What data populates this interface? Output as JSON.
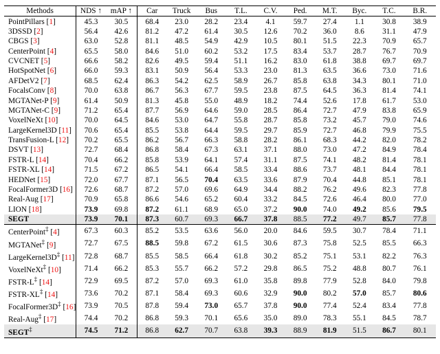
{
  "columns": [
    "Methods",
    "NDS ↑",
    "mAP ↑",
    "Car",
    "Truck",
    "Bus",
    "T.L.",
    "C.V.",
    "Ped.",
    "M.T.",
    "Byc.",
    "T.C.",
    "B.R."
  ],
  "col_widths": [
    "16.5%",
    "6.8%",
    "7.2%",
    "6.8%",
    "6.8%",
    "6.8%",
    "6.8%",
    "6.8%",
    "6.8%",
    "6.8%",
    "6.8%",
    "6.8%",
    "7.3%"
  ],
  "sections": [
    {
      "rows": [
        {
          "method": "PointPillars",
          "ref": "1",
          "v": [
            "45.3",
            "30.5",
            "68.4",
            "23.0",
            "28.2",
            "23.4",
            "4.1",
            "59.7",
            "27.4",
            "1.1",
            "30.8",
            "38.9"
          ]
        },
        {
          "method": "3DSSD",
          "ref": "2",
          "v": [
            "56.4",
            "42.6",
            "81.2",
            "47.2",
            "61.4",
            "30.5",
            "12.6",
            "70.2",
            "36.0",
            "8.6",
            "31.1",
            "47.9"
          ]
        },
        {
          "method": "CBGS",
          "ref": "3",
          "v": [
            "63.0",
            "52.8",
            "81.1",
            "48.5",
            "54.9",
            "42.9",
            "10.5",
            "80.1",
            "51.5",
            "22.3",
            "70.9",
            "65.7"
          ]
        },
        {
          "method": "CenterPoint",
          "ref": "4",
          "v": [
            "65.5",
            "58.0",
            "84.6",
            "51.0",
            "60.2",
            "53.2",
            "17.5",
            "83.4",
            "53.7",
            "28.7",
            "76.7",
            "70.9"
          ]
        },
        {
          "method": "CVCNET",
          "ref": "5",
          "v": [
            "66.6",
            "58.2",
            "82.6",
            "49.5",
            "59.4",
            "51.1",
            "16.2",
            "83.0",
            "61.8",
            "38.8",
            "69.7",
            "69.7"
          ]
        },
        {
          "method": "HotSpotNet",
          "ref": "6",
          "v": [
            "66.0",
            "59.3",
            "83.1",
            "50.9",
            "56.4",
            "53.3",
            "23.0",
            "81.3",
            "63.5",
            "36.6",
            "73.0",
            "71.6"
          ]
        },
        {
          "method": "AFDetV2",
          "ref": "7",
          "v": [
            "68.5",
            "62.4",
            "86.3",
            "54.2",
            "62.5",
            "58.9",
            "26.7",
            "85.8",
            "63.8",
            "34.3",
            "80.1",
            "71.0"
          ]
        },
        {
          "method": "FocalsConv",
          "ref": "8",
          "v": [
            "70.0",
            "63.8",
            "86.7",
            "56.3",
            "67.7",
            "59.5",
            "23.8",
            "87.5",
            "64.5",
            "36.3",
            "81.4",
            "74.1"
          ]
        },
        {
          "method": "MGTANet-P",
          "ref": "9",
          "v": [
            "61.4",
            "50.9",
            "81.3",
            "45.8",
            "55.0",
            "48.9",
            "18.2",
            "74.4",
            "52.6",
            "17.8",
            "61.7",
            "53.0"
          ]
        },
        {
          "method": "MGTANet-C",
          "ref": "9",
          "v": [
            "71.2",
            "65.4",
            "87.7",
            "56.9",
            "64.6",
            "59.0",
            "28.5",
            "86.4",
            "72.7",
            "47.9",
            "83.8",
            "65.9"
          ]
        },
        {
          "method": "VoxelNeXt",
          "ref": "10",
          "v": [
            "70.0",
            "64.5",
            "84.6",
            "53.0",
            "64.7",
            "55.8",
            "28.7",
            "85.8",
            "73.2",
            "45.7",
            "79.0",
            "74.6"
          ]
        },
        {
          "method": "LargeKernel3D",
          "ref": "11",
          "v": [
            "70.6",
            "65.4",
            "85.5",
            "53.8",
            "64.4",
            "59.5",
            "29.7",
            "85.9",
            "72.7",
            "46.8",
            "79.9",
            "75.5"
          ]
        },
        {
          "method": "TransFusion-L",
          "ref": "12",
          "v": [
            "70.2",
            "65.5",
            "86.2",
            "56.7",
            "66.3",
            "58.8",
            "28.2",
            "86.1",
            "68.3",
            "44.2",
            "82.0",
            "78.2"
          ]
        },
        {
          "method": "DSVT",
          "ref": "13",
          "v": [
            "72.7",
            "68.4",
            "86.8",
            "58.4",
            "67.3",
            "63.1",
            "37.1",
            "88.0",
            "73.0",
            "47.2",
            "84.9",
            "78.4"
          ]
        },
        {
          "method": "FSTR-L",
          "ref": "14",
          "v": [
            "70.4",
            "66.2",
            "85.8",
            "53.9",
            "64.1",
            "57.4",
            "31.1",
            "87.5",
            "74.1",
            "48.2",
            "81.4",
            "78.1"
          ]
        },
        {
          "method": "FSTR-XL",
          "ref": "14",
          "v": [
            "71.5",
            "67.2",
            "86.5",
            "54.1",
            "66.4",
            "58.5",
            "33.4",
            "88.6",
            "73.7",
            "48.1",
            "84.4",
            "78.1"
          ]
        },
        {
          "method": "HEDNet",
          "ref": "15",
          "v": [
            "72.0",
            "67.7",
            "87.1",
            "56.5",
            "70.4",
            "63.5",
            "33.6",
            "87.9",
            "70.4",
            "44.8",
            "85.1",
            "78.1"
          ],
          "bold_idx": [
            4
          ]
        },
        {
          "method": "FocalFormer3D",
          "ref": "16",
          "v": [
            "72.6",
            "68.7",
            "87.2",
            "57.0",
            "69.6",
            "64.9",
            "34.4",
            "88.2",
            "76.2",
            "49.6",
            "82.3",
            "77.8"
          ]
        },
        {
          "method": "Real-Aug",
          "ref": "17",
          "v": [
            "70.9",
            "65.8",
            "86.6",
            "54.6",
            "65.2",
            "60.4",
            "33.2",
            "84.5",
            "72.6",
            "46.4",
            "80.0",
            "77.0"
          ]
        },
        {
          "method": "LION",
          "ref": "18",
          "bold_method": false,
          "v": [
            "73.9",
            "69.8",
            "87.2",
            "61.1",
            "68.9",
            "65.0",
            "37.2",
            "90.0",
            "74.0",
            "49.2",
            "85.6",
            "79.5"
          ],
          "bold_idx": [
            0,
            2,
            7,
            9,
            11
          ]
        },
        {
          "method": "SEGT",
          "bold_method": true,
          "highlight": true,
          "v": [
            "73.9",
            "70.1",
            "87.3",
            "60.7",
            "69.3",
            "66.7",
            "37.8",
            "88.5",
            "77.2",
            "49.7",
            "85.7",
            "77.8"
          ],
          "bold_idx": [
            0,
            1,
            2,
            5,
            6,
            8,
            10
          ]
        }
      ]
    },
    {
      "rows": [
        {
          "method": "CenterPoint",
          "dag": true,
          "ref": "4",
          "v": [
            "67.3",
            "60.3",
            "85.2",
            "53.5",
            "63.6",
            "56.0",
            "20.0",
            "84.6",
            "59.5",
            "30.7",
            "78.4",
            "71.1"
          ]
        },
        {
          "method": "MGTANet",
          "dag": true,
          "ref": "9",
          "v": [
            "72.7",
            "67.5",
            "88.5",
            "59.8",
            "67.2",
            "61.5",
            "30.6",
            "87.3",
            "75.8",
            "52.5",
            "85.5",
            "66.3"
          ],
          "bold_idx": [
            2
          ]
        },
        {
          "method": "LargeKernel3D",
          "dag": true,
          "ref": "11",
          "v": [
            "72.8",
            "68.7",
            "85.5",
            "58.5",
            "66.4",
            "61.8",
            "30.2",
            "85.2",
            "75.1",
            "53.1",
            "82.2",
            "76.3"
          ]
        },
        {
          "method": "VoxelNeXt",
          "dag": true,
          "ref": "10",
          "v": [
            "71.4",
            "66.2",
            "85.3",
            "55.7",
            "66.2",
            "57.2",
            "29.8",
            "86.5",
            "75.2",
            "48.8",
            "80.7",
            "76.1"
          ]
        },
        {
          "method": "FSTR-L",
          "dag": true,
          "ref": "14",
          "v": [
            "72.9",
            "69.5",
            "87.2",
            "57.0",
            "69.3",
            "61.0",
            "35.8",
            "89.8",
            "77.9",
            "52.8",
            "84.0",
            "79.8"
          ]
        },
        {
          "method": "FSTR-XL",
          "dag": true,
          "ref": "14",
          "v": [
            "73.6",
            "70.2",
            "87.1",
            "58.4",
            "69.3",
            "60.6",
            "32.9",
            "90.0",
            "80.2",
            "57.0",
            "85.7",
            "80.6"
          ],
          "bold_idx": [
            7,
            9,
            11
          ]
        },
        {
          "method": "FocalFormer3D",
          "dag": true,
          "ref": "16",
          "v": [
            "73.9",
            "70.5",
            "87.8",
            "59.4",
            "73.0",
            "65.7",
            "37.8",
            "90.0",
            "77.4",
            "52.4",
            "83.4",
            "77.8"
          ],
          "bold_idx": [
            4,
            7
          ]
        },
        {
          "method": "Real-Aug",
          "dag": true,
          "ref": "17",
          "v": [
            "74.4",
            "70.2",
            "86.8",
            "59.3",
            "70.1",
            "65.6",
            "35.0",
            "89.0",
            "78.3",
            "55.1",
            "84.5",
            "78.7"
          ]
        },
        {
          "method": "SEGT",
          "dag": true,
          "bold_method": true,
          "highlight": true,
          "v": [
            "74.5",
            "71.2",
            "86.8",
            "62.7",
            "70.7",
            "63.8",
            "39.3",
            "88.9",
            "81.9",
            "51.5",
            "86.7",
            "80.1"
          ],
          "bold_idx": [
            0,
            1,
            3,
            6,
            8,
            10
          ]
        }
      ]
    }
  ]
}
